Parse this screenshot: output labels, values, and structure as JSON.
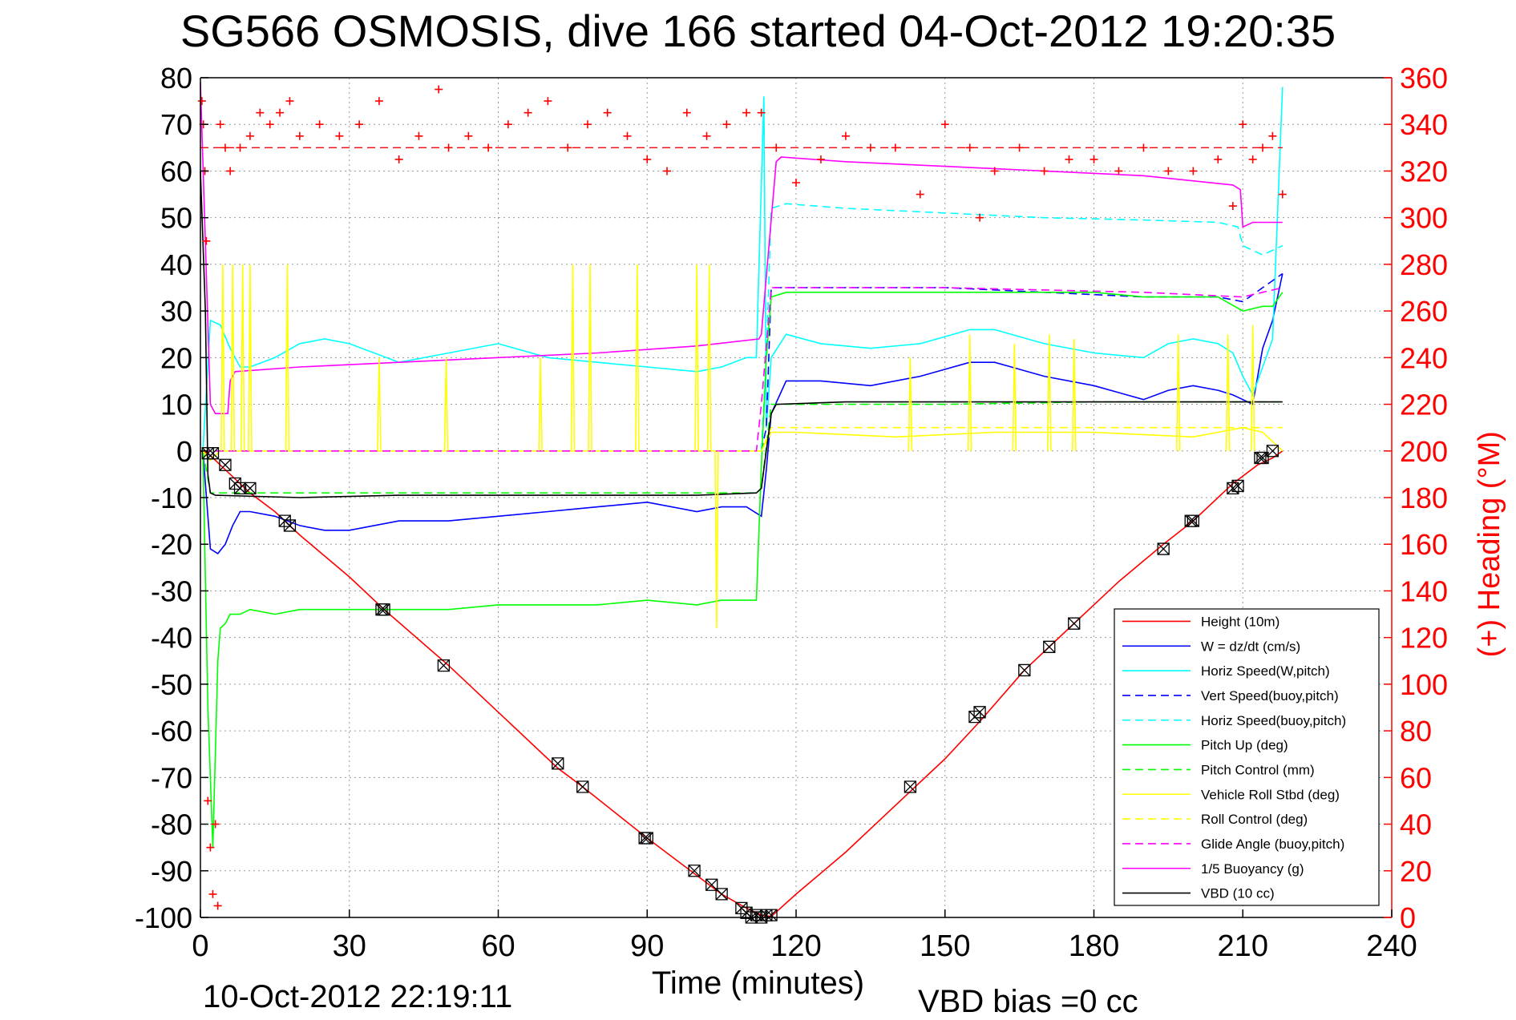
{
  "chart_data": {
    "type": "line",
    "title": "SG566 OSMOSIS, dive 166 started 04-Oct-2012 19:20:35",
    "xlabel": "Time (minutes)",
    "ylabel": "",
    "y2label": "(+) Heading (°M)",
    "xlim": [
      0,
      240
    ],
    "ylim": [
      -100,
      80
    ],
    "y2lim": [
      0,
      360
    ],
    "x_ticks": [
      "0",
      "30",
      "60",
      "90",
      "120",
      "150",
      "180",
      "210",
      "240"
    ],
    "y_ticks": [
      "-100",
      "-90",
      "-80",
      "-70",
      "-60",
      "-50",
      "-40",
      "-30",
      "-20",
      "-10",
      "0",
      "10",
      "20",
      "30",
      "40",
      "50",
      "60",
      "70",
      "80"
    ],
    "y2_ticks": [
      "0",
      "20",
      "40",
      "60",
      "80",
      "100",
      "120",
      "140",
      "160",
      "180",
      "200",
      "220",
      "240",
      "260",
      "280",
      "300",
      "320",
      "340",
      "360"
    ],
    "grid": true,
    "legend_position": "bottom-right",
    "legend": [
      {
        "label": "Height (10m)",
        "color": "#ff0000",
        "dash": false
      },
      {
        "label": "W = dz/dt (cm/s)",
        "color": "#0000ff",
        "dash": false
      },
      {
        "label": "Horiz Speed(W,pitch)",
        "color": "#00ffff",
        "dash": false
      },
      {
        "label": "Vert Speed(buoy,pitch)",
        "color": "#0000ff",
        "dash": true
      },
      {
        "label": "Horiz Speed(buoy,pitch)",
        "color": "#00ffff",
        "dash": true
      },
      {
        "label": "Pitch Up (deg)",
        "color": "#00ff00",
        "dash": false
      },
      {
        "label": "Pitch Control (mm)",
        "color": "#00ff00",
        "dash": true
      },
      {
        "label": "Vehicle Roll Stbd (deg)",
        "color": "#ffff00",
        "dash": false
      },
      {
        "label": "Roll Control (deg)",
        "color": "#ffff00",
        "dash": true
      },
      {
        "label": "Glide Angle (buoy,pitch)",
        "color": "#ff00ff",
        "dash": true
      },
      {
        "label": "1/5 Buoyancy (g)",
        "color": "#ff00ff",
        "dash": false
      },
      {
        "label": "VBD (10 cc)",
        "color": "#000000",
        "dash": false
      }
    ],
    "series": [
      {
        "name": "Height (10m)",
        "color": "#ff0000",
        "axis": "left",
        "x": [
          0,
          1.5,
          3,
          6,
          10,
          15,
          20,
          30,
          37,
          50,
          60,
          72,
          77,
          90,
          100,
          105,
          110,
          113,
          115,
          120,
          130,
          143,
          150,
          157,
          166,
          175,
          185,
          194,
          200,
          208,
          213,
          216,
          218
        ],
        "y": [
          0,
          -0.5,
          -2,
          -5,
          -9,
          -13,
          -18,
          -27,
          -34,
          -46,
          -56,
          -68,
          -72,
          -83,
          -91,
          -95,
          -98,
          -99.5,
          -99.8,
          -95,
          -86,
          -73,
          -66,
          -58,
          -47,
          -38,
          -28,
          -20,
          -15,
          -7,
          -3,
          -1.5,
          0
        ]
      },
      {
        "name": "W = dz/dt (cm/s)",
        "color": "#0000ff",
        "axis": "left",
        "x": [
          0.5,
          2,
          3.5,
          5,
          6.5,
          8,
          10,
          15,
          20,
          25,
          30,
          40,
          50,
          60,
          70,
          80,
          90,
          100,
          105,
          110,
          113,
          114,
          115,
          118,
          125,
          135,
          145,
          155,
          160,
          170,
          180,
          190,
          195,
          200,
          205,
          208,
          210,
          212,
          214,
          216,
          218
        ],
        "y": [
          0,
          -21,
          -22,
          -20,
          -16,
          -13,
          -13,
          -14,
          -16,
          -17,
          -17,
          -15,
          -15,
          -14,
          -13,
          -12,
          -11,
          -13,
          -12,
          -12,
          -14,
          -4,
          8,
          15,
          15,
          14,
          16,
          19,
          19,
          16,
          14,
          11,
          13,
          14,
          13,
          12,
          11,
          10,
          22,
          28,
          38
        ]
      },
      {
        "name": "Horiz Speed(W,pitch)",
        "color": "#00ffff",
        "axis": "left",
        "x": [
          0.5,
          2,
          4,
          6,
          8,
          10,
          15,
          20,
          25,
          30,
          40,
          50,
          60,
          70,
          80,
          90,
          100,
          105,
          110,
          112,
          113.5,
          114,
          115,
          118,
          125,
          135,
          145,
          155,
          160,
          170,
          180,
          190,
          195,
          200,
          205,
          208,
          210,
          212,
          214,
          216,
          218
        ],
        "y": [
          0,
          28,
          27,
          22,
          18,
          18,
          20,
          23,
          24,
          23,
          19,
          21,
          23,
          20,
          19,
          18,
          17,
          18,
          20,
          20,
          76,
          5,
          20,
          25,
          23,
          22,
          23,
          26,
          26,
          23,
          21,
          20,
          23,
          24,
          23,
          21,
          16,
          12,
          18,
          24,
          78
        ]
      },
      {
        "name": "Vert Speed(buoy,pitch)",
        "color": "#0000ff",
        "axis": "left",
        "dash": true,
        "x": [
          113,
          114,
          115,
          118,
          130,
          150,
          170,
          190,
          205,
          210,
          214,
          218
        ],
        "y": [
          0,
          5,
          35,
          35,
          35,
          35,
          34,
          33,
          33,
          32,
          35,
          38
        ]
      },
      {
        "name": "Horiz Speed(buoy,pitch)",
        "color": "#00ffff",
        "axis": "left",
        "dash": true,
        "x": [
          113,
          114,
          115,
          118,
          130,
          150,
          170,
          190,
          205,
          209,
          210,
          212,
          214,
          218
        ],
        "y": [
          0,
          20,
          52,
          53,
          52,
          51,
          50,
          49.5,
          49,
          48,
          44,
          43,
          42,
          44
        ]
      },
      {
        "name": "Pitch Up (deg)",
        "color": "#00ff00",
        "axis": "left",
        "x": [
          0.5,
          1.5,
          2.5,
          3.5,
          4,
          5,
          6,
          8,
          10,
          15,
          20,
          30,
          40,
          50,
          60,
          70,
          80,
          90,
          100,
          105,
          110,
          112,
          113,
          114,
          115,
          118,
          130,
          150,
          160,
          170,
          180,
          190,
          200,
          205,
          210,
          214,
          216,
          218
        ],
        "y": [
          0,
          -55,
          -85,
          -45,
          -38,
          -37,
          -35,
          -35,
          -34,
          -35,
          -34,
          -34,
          -34,
          -34,
          -33,
          -33,
          -33,
          -32,
          -33,
          -32,
          -32,
          -32,
          -3,
          20,
          33,
          34,
          34,
          34,
          34,
          34,
          34,
          33,
          33,
          33,
          30,
          31,
          31,
          34
        ]
      },
      {
        "name": "Pitch Control (mm)",
        "color": "#00ff00",
        "axis": "left",
        "dash": true,
        "x": [
          0.5,
          2,
          5,
          10,
          30,
          60,
          90,
          112,
          113,
          115,
          120,
          150,
          180,
          210,
          218
        ],
        "y": [
          0,
          -9,
          -9,
          -9,
          -9,
          -9,
          -9,
          -9,
          -8,
          10,
          10,
          10,
          10.5,
          10.5,
          10.5
        ]
      },
      {
        "name": "Vehicle Roll Stbd (deg)",
        "color": "#ffff00",
        "axis": "left",
        "x": [
          0.5,
          2,
          4,
          8,
          20,
          40,
          60,
          80,
          100,
          110,
          113,
          115,
          120,
          140,
          160,
          180,
          200,
          210,
          214,
          216,
          218
        ],
        "y": [
          0,
          -2,
          0,
          0,
          0,
          0,
          0,
          0,
          0,
          0,
          0,
          4,
          4,
          3,
          4,
          4,
          3,
          5,
          4,
          2,
          0
        ]
      },
      {
        "name": "Roll Control (deg)",
        "color": "#ffff00",
        "axis": "left",
        "dash": true,
        "x": [
          0.5,
          2,
          5,
          50,
          100,
          112,
          113,
          115,
          150,
          200,
          218
        ],
        "y": [
          0,
          0,
          0,
          0,
          0,
          0,
          0,
          5,
          5,
          5,
          5
        ]
      },
      {
        "name": "Glide Angle (buoy,pitch)",
        "color": "#ff00ff",
        "axis": "left",
        "dash": true,
        "x": [
          0.5,
          5,
          50,
          100,
          112,
          113,
          115,
          150,
          190,
          210,
          218
        ],
        "y": [
          0,
          0,
          0,
          0,
          0,
          10,
          35,
          35,
          34,
          33,
          35
        ]
      },
      {
        "name": "1/5 Buoyancy (g)",
        "color": "#ff00ff",
        "axis": "left",
        "x": [
          0,
          2,
          3,
          5.5,
          6,
          7,
          20,
          40,
          60,
          80,
          100,
          112.5,
          113,
          116,
          117,
          130,
          150,
          170,
          190,
          208,
          209.5,
          210,
          212,
          216,
          218
        ],
        "y": [
          79,
          10,
          8,
          8,
          15,
          17,
          18,
          19,
          20,
          21,
          22.5,
          24,
          25,
          62,
          63,
          62,
          61,
          60,
          59,
          57,
          56,
          48,
          49,
          49,
          49
        ]
      },
      {
        "name": "VBD (10 cc)",
        "color": "#000000",
        "axis": "left",
        "x": [
          0,
          1,
          1.5,
          2,
          3,
          20,
          40,
          60,
          80,
          100,
          112,
          113,
          115,
          116,
          130,
          150,
          180,
          210,
          218
        ],
        "y": [
          60,
          30,
          -5,
          -9,
          -9.5,
          -10,
          -9.5,
          -9.5,
          -9.5,
          -9.5,
          -9,
          -8,
          8,
          10,
          10.5,
          10.5,
          10.5,
          10.5,
          10.5
        ]
      }
    ],
    "roll_spikes": {
      "color": "#ffff00",
      "axis": "left",
      "x": [
        4.5,
        6.5,
        8.5,
        10,
        17.5,
        36,
        49.5,
        68.5,
        75,
        78.5,
        88,
        100,
        102.5,
        104,
        143,
        155,
        164,
        171,
        176,
        197,
        207,
        212
      ],
      "peak": [
        40,
        40,
        40,
        40,
        40,
        20,
        20,
        20,
        40,
        40,
        40,
        40,
        40,
        -38,
        20,
        25,
        23,
        25,
        24,
        25,
        25,
        27
      ]
    },
    "heading": {
      "name": "(+) Heading",
      "color": "#ff0000",
      "axis": "right",
      "marker": "+",
      "reference_line": 330,
      "x": [
        0.3,
        0.6,
        0.9,
        1.2,
        1.5,
        2,
        2.5,
        3,
        3.5,
        4,
        5,
        6,
        8,
        10,
        12,
        14,
        16,
        18,
        20,
        24,
        28,
        32,
        36,
        40,
        44,
        48,
        50,
        54,
        58,
        62,
        66,
        70,
        74,
        78,
        82,
        86,
        90,
        94,
        98,
        102,
        106,
        110,
        113,
        116,
        120,
        125,
        130,
        135,
        140,
        145,
        150,
        155,
        157,
        160,
        165,
        170,
        175,
        180,
        185,
        190,
        195,
        200,
        205,
        208,
        210,
        212,
        214,
        216,
        218
      ],
      "y": [
        350,
        340,
        320,
        290,
        50,
        30,
        10,
        40,
        5,
        340,
        330,
        320,
        330,
        335,
        345,
        340,
        345,
        350,
        335,
        340,
        335,
        340,
        350,
        325,
        335,
        355,
        330,
        335,
        330,
        340,
        345,
        350,
        330,
        340,
        345,
        335,
        325,
        320,
        345,
        335,
        340,
        345,
        345,
        330,
        315,
        325,
        335,
        330,
        330,
        310,
        340,
        330,
        300,
        320,
        330,
        320,
        325,
        325,
        320,
        330,
        320,
        320,
        325,
        305,
        340,
        325,
        330,
        335,
        310
      ]
    },
    "dive_markers": {
      "marker": "box-x",
      "color": "#000000",
      "axis": "left",
      "x": [
        1.5,
        2.5,
        5,
        7,
        8,
        10,
        17,
        18,
        36.5,
        37,
        49,
        72,
        77,
        89.5,
        90,
        99.5,
        103,
        105,
        109,
        110,
        111,
        112,
        113,
        114,
        115,
        143,
        156,
        157,
        166,
        171,
        176,
        194,
        199.5,
        200,
        208,
        209,
        213.5,
        214,
        216
      ],
      "y": [
        -0.5,
        -0.5,
        -3,
        -7,
        -8,
        -8,
        -15,
        -16,
        -34,
        -34,
        -46,
        -67,
        -72,
        -83,
        -83,
        -90,
        -93,
        -95,
        -98,
        -99,
        -100,
        -99.5,
        -100,
        -99.5,
        -99.5,
        -72,
        -57,
        -56,
        -47,
        -42,
        -37,
        -21,
        -15,
        -15,
        -8,
        -7.5,
        -1.5,
        -1.5,
        0
      ]
    }
  },
  "footer": {
    "timestamp": "10-Oct-2012 22:19:11",
    "vbd_bias": "VBD bias =0 cc"
  }
}
